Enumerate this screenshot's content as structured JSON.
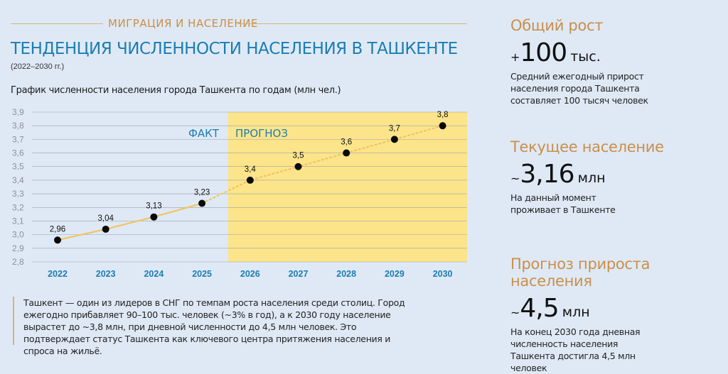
{
  "header": {
    "category": "МИГРАЦИЯ И НАСЕЛЕНИЕ",
    "title": "ТЕНДЕНЦИЯ ЧИСЛЕННОСТИ НАСЕЛЕНИЯ В ТАШКЕНТЕ",
    "years": "(2022–2030 гг.)"
  },
  "colors": {
    "accent_blue": "#1b7db3",
    "accent_gold": "#c98f4a",
    "forecast_bg": "#fce48a",
    "line": "#f0c462"
  },
  "chart_data": {
    "type": "line",
    "title": "График численности населения города Ташкента по годам (млн чел.)",
    "x": [
      "2022",
      "2023",
      "2024",
      "2025",
      "2026",
      "2027",
      "2028",
      "2029",
      "2030"
    ],
    "series": [
      {
        "values": [
          2.96,
          3.04,
          3.13,
          3.23,
          3.4,
          3.5,
          3.6,
          3.7,
          3.8
        ],
        "labels": [
          "2,96",
          "3,04",
          "3,13",
          "3,23",
          "3,4",
          "3,5",
          "3,6",
          "3,7",
          "3,8"
        ]
      }
    ],
    "fact_years": [
      "2022",
      "2023",
      "2024",
      "2025"
    ],
    "forecast_years": [
      "2026",
      "2027",
      "2028",
      "2029",
      "2030"
    ],
    "ylim": [
      2.8,
      3.9
    ],
    "yticks": [
      "2,8",
      "2,9",
      "3,0",
      "3,1",
      "3,2",
      "3,3",
      "3,4",
      "3,5",
      "3,6",
      "3,7",
      "3,8",
      "3,9"
    ],
    "region_labels": {
      "fact": "ФАКТ",
      "forecast": "ПРОГНОЗ"
    },
    "grid": true,
    "legend": "none"
  },
  "description": "Ташкент — один из лидеров в СНГ по темпам роста населения среди столиц. Город ежегодно прибавляет 90–100 тыс. человек (~3% в год), а к 2030 году население вырастет до ~3,8 млн, при дневной численности до 4,5 млн человек. Это подтверждает статус Ташкента как ключевого центра притяжения населения и спроса на жильё.",
  "sidebar": {
    "growth": {
      "heading": "Общий рост",
      "prefix": "+",
      "value": "100",
      "unit": "тыс.",
      "text": "Средний ежегодный прирост населения города Ташкента составляет 100 тысяч человек"
    },
    "current": {
      "heading": "Текущее население",
      "prefix": "~",
      "value": "3,16",
      "unit": "млн",
      "text": "На данный момент проживает в Ташкенте"
    },
    "forecast": {
      "heading": "Прогноз прироста населения",
      "prefix": "~",
      "value": "4,5",
      "unit": "млн",
      "text": "На конец 2030 года дневная численность населения Ташкента достигла 4,5 млн человек"
    }
  }
}
